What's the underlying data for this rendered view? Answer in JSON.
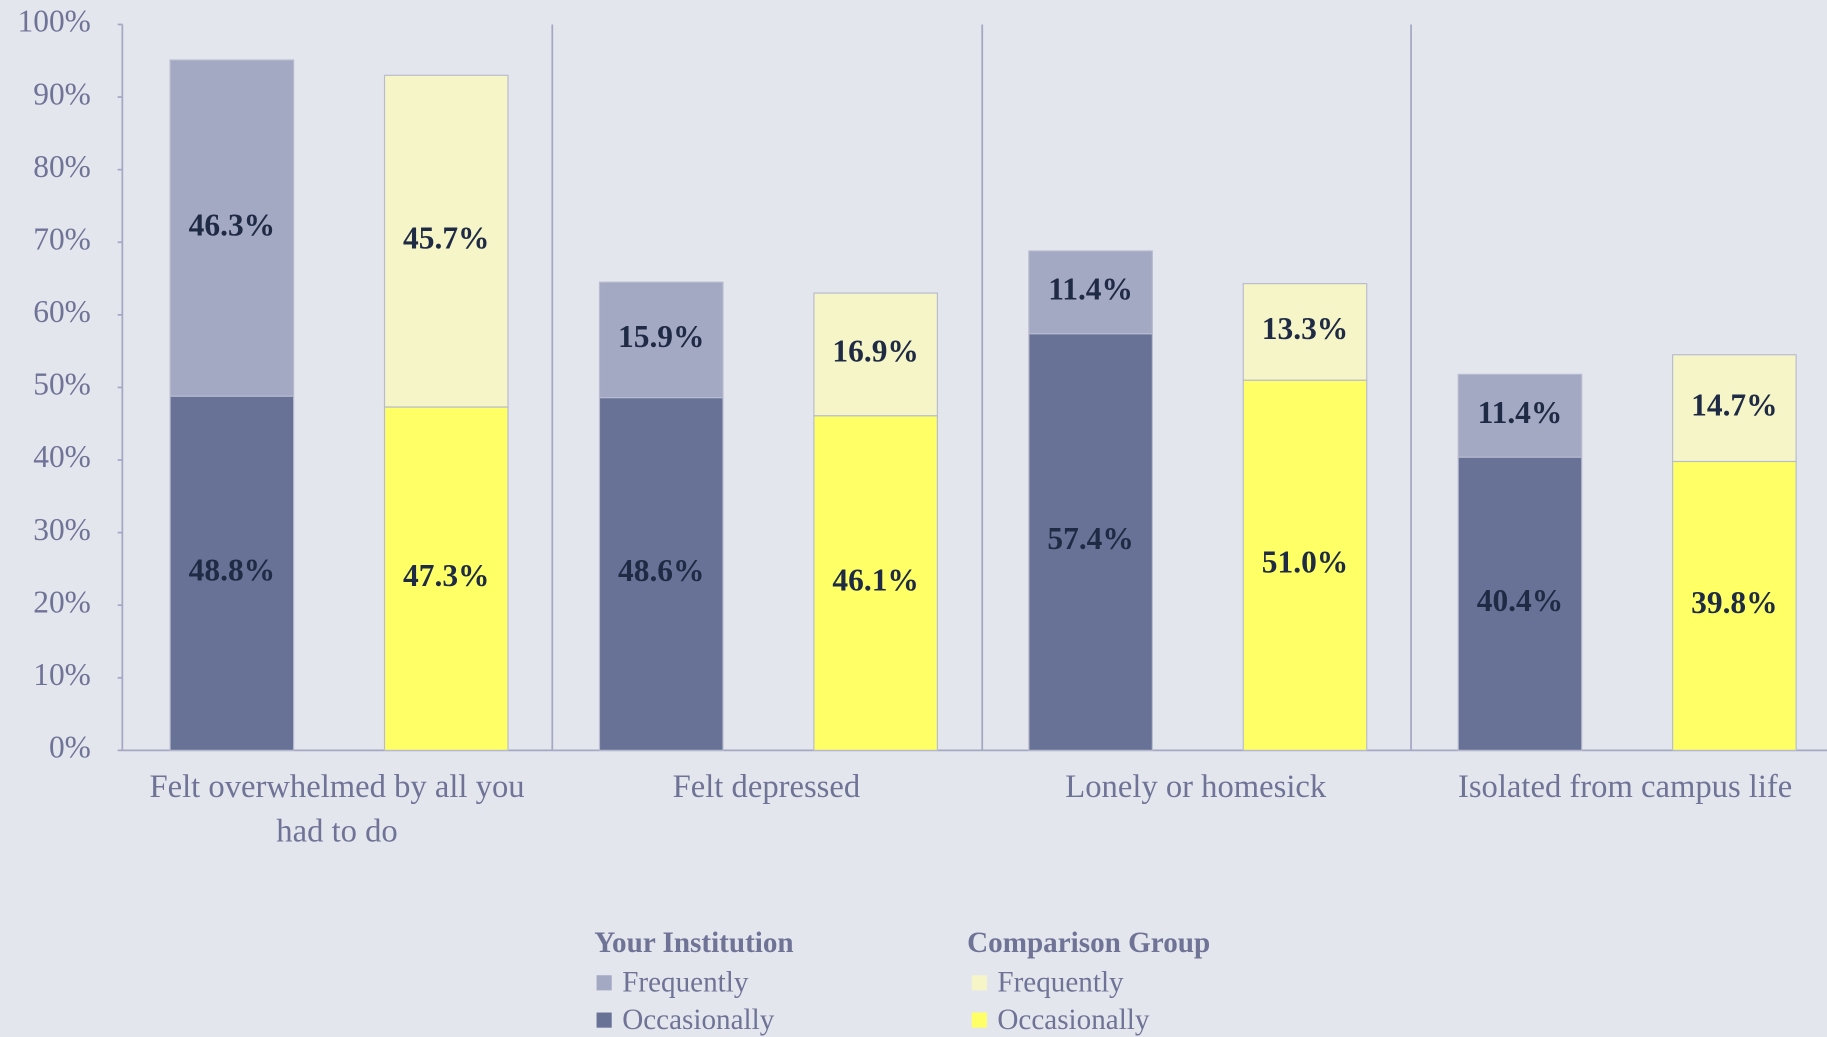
{
  "chart_data": {
    "type": "bar",
    "stacked": true,
    "categories": [
      "Felt overwhelmed by all you had to do",
      "Felt depressed",
      "Lonely or homesick",
      "Isolated from campus life"
    ],
    "ylim": [
      0,
      100
    ],
    "yticks": [
      {
        "value": 0,
        "label": "0%"
      },
      {
        "value": 10,
        "label": "10%"
      },
      {
        "value": 20,
        "label": "20%"
      },
      {
        "value": 30,
        "label": "30%"
      },
      {
        "value": 40,
        "label": "40%"
      },
      {
        "value": 50,
        "label": "50%"
      },
      {
        "value": 60,
        "label": "60%"
      },
      {
        "value": 70,
        "label": "70%"
      },
      {
        "value": 80,
        "label": "80%"
      },
      {
        "value": 90,
        "label": "90%"
      },
      {
        "value": 100,
        "label": "100%"
      }
    ],
    "groups": [
      {
        "name": "Your Institution",
        "series": [
          {
            "name": "Frequently",
            "color": "#a3a8c3",
            "values": [
              46.3,
              15.9,
              11.4,
              11.4
            ],
            "value_labels": [
              "46.3%",
              "15.9%",
              "11.4%",
              "11.4%"
            ]
          },
          {
            "name": "Occasionally",
            "color": "#687296",
            "values": [
              48.8,
              48.6,
              57.4,
              40.4
            ],
            "value_labels": [
              "48.8%",
              "48.6%",
              "57.4%",
              "40.4%"
            ]
          }
        ]
      },
      {
        "name": "Comparison Group",
        "series": [
          {
            "name": "Frequently",
            "color": "#f5f5c8",
            "values": [
              45.7,
              16.9,
              13.3,
              14.7
            ],
            "value_labels": [
              "45.7%",
              "16.9%",
              "13.3%",
              "14.7%"
            ]
          },
          {
            "name": "Occasionally",
            "color": "#ffff66",
            "values": [
              47.3,
              46.1,
              51.0,
              39.8
            ],
            "value_labels": [
              "47.3%",
              "46.1%",
              "51.0%",
              "39.8%"
            ]
          }
        ]
      }
    ]
  }
}
